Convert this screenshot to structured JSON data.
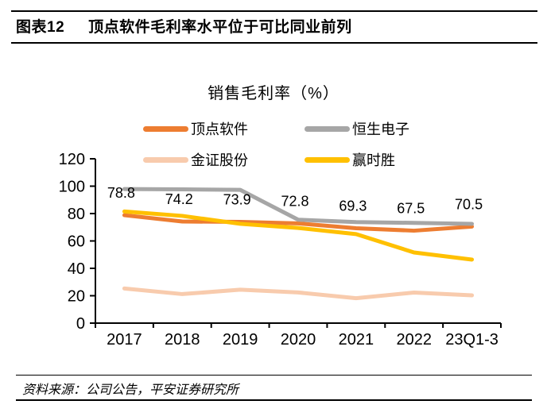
{
  "header": {
    "figure_label": "图表12",
    "title": "顶点软件毛利率水平位于可比同业前列"
  },
  "chart_data": {
    "type": "line",
    "title": "销售毛利率（%）",
    "categories": [
      "2017",
      "2018",
      "2019",
      "2020",
      "2021",
      "2022",
      "23Q1-3"
    ],
    "series": [
      {
        "name": "顶点软件",
        "color": "#ED7D31",
        "values": [
          78.8,
          74.2,
          73.9,
          72.8,
          69.3,
          67.5,
          70.5
        ],
        "data_labels": [
          "78.8",
          "74.2",
          "73.9",
          "72.8",
          "69.3",
          "67.5",
          "70.5"
        ]
      },
      {
        "name": "恒生电子",
        "color": "#A6A6A6",
        "values": [
          97.9,
          97.7,
          97.3,
          75.5,
          73.8,
          73.2,
          72.5
        ]
      },
      {
        "name": "金证股份",
        "color": "#F8CBAD",
        "values": [
          25.3,
          21.2,
          24.4,
          22.4,
          18.2,
          22.3,
          20.3
        ]
      },
      {
        "name": "赢时胜",
        "color": "#FFC000",
        "values": [
          81.5,
          78.3,
          72.5,
          69.5,
          65.0,
          51.6,
          46.4
        ]
      }
    ],
    "ylim": [
      0,
      120
    ],
    "yticks": [
      0,
      20,
      40,
      60,
      80,
      100,
      120
    ],
    "grid": false,
    "legend_position": "top",
    "labeled_series": "顶点软件",
    "axis_color": "#000000"
  },
  "footer": {
    "source": "资料来源：公司公告，平安证券研究所"
  }
}
